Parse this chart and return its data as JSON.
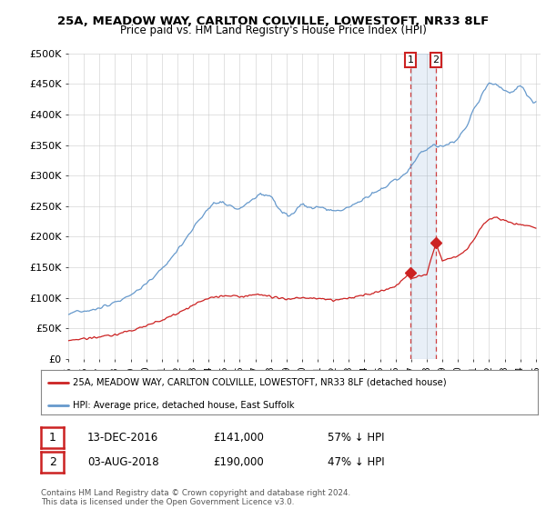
{
  "title1": "25A, MEADOW WAY, CARLTON COLVILLE, LOWESTOFT, NR33 8LF",
  "title2": "Price paid vs. HM Land Registry's House Price Index (HPI)",
  "ylim": [
    0,
    500000
  ],
  "yticks": [
    0,
    50000,
    100000,
    150000,
    200000,
    250000,
    300000,
    350000,
    400000,
    450000,
    500000
  ],
  "ytick_labels": [
    "£0",
    "£50K",
    "£100K",
    "£150K",
    "£200K",
    "£250K",
    "£300K",
    "£350K",
    "£400K",
    "£450K",
    "£500K"
  ],
  "hpi_color": "#6699cc",
  "price_color": "#cc2222",
  "shade_color": "#ddeeff",
  "sale1_x": 2016.96,
  "sale1_y": 141000,
  "sale2_x": 2018.58,
  "sale2_y": 190000,
  "legend_label1": "25A, MEADOW WAY, CARLTON COLVILLE, LOWESTOFT, NR33 8LF (detached house)",
  "legend_label2": "HPI: Average price, detached house, East Suffolk",
  "note1_date": "13-DEC-2016",
  "note1_price": "£141,000",
  "note1_hpi": "57% ↓ HPI",
  "note2_date": "03-AUG-2018",
  "note2_price": "£190,000",
  "note2_hpi": "47% ↓ HPI",
  "footer": "Contains HM Land Registry data © Crown copyright and database right 2024.\nThis data is licensed under the Open Government Licence v3.0.",
  "background_color": "#ffffff",
  "grid_color": "#cccccc",
  "xlim_left": 1995.0,
  "xlim_right": 2025.3
}
